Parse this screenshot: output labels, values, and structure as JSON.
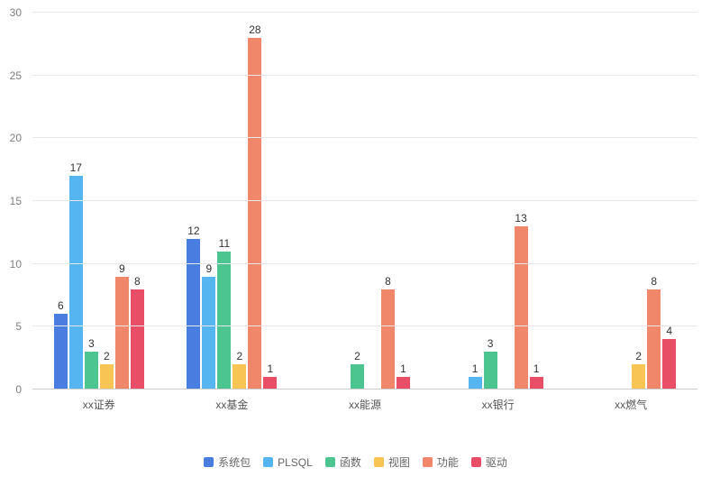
{
  "chart_data": {
    "type": "bar",
    "title": "",
    "xlabel": "",
    "ylabel": "",
    "categories": [
      "xx证券",
      "xx基金",
      "xx能源",
      "xx银行",
      "xx燃气"
    ],
    "series": [
      {
        "name": "系统包",
        "color": "#4a7de0",
        "values": [
          6,
          12,
          0,
          0,
          0
        ]
      },
      {
        "name": "PLSQL",
        "color": "#55b5f0",
        "values": [
          17,
          9,
          0,
          1,
          0
        ]
      },
      {
        "name": "函数",
        "color": "#4cc591",
        "values": [
          3,
          11,
          2,
          3,
          0
        ]
      },
      {
        "name": "视图",
        "color": "#f8c454",
        "values": [
          2,
          2,
          0,
          0,
          2
        ]
      },
      {
        "name": "功能",
        "color": "#f0876a",
        "values": [
          9,
          28,
          8,
          13,
          8
        ]
      },
      {
        "name": "驱动",
        "color": "#e84f66",
        "values": [
          8,
          1,
          1,
          1,
          4
        ]
      }
    ],
    "ylim": [
      0,
      30
    ],
    "yticks": [
      0,
      5,
      10,
      15,
      20,
      25,
      30
    ],
    "grid": true,
    "legend_position": "bottom"
  }
}
